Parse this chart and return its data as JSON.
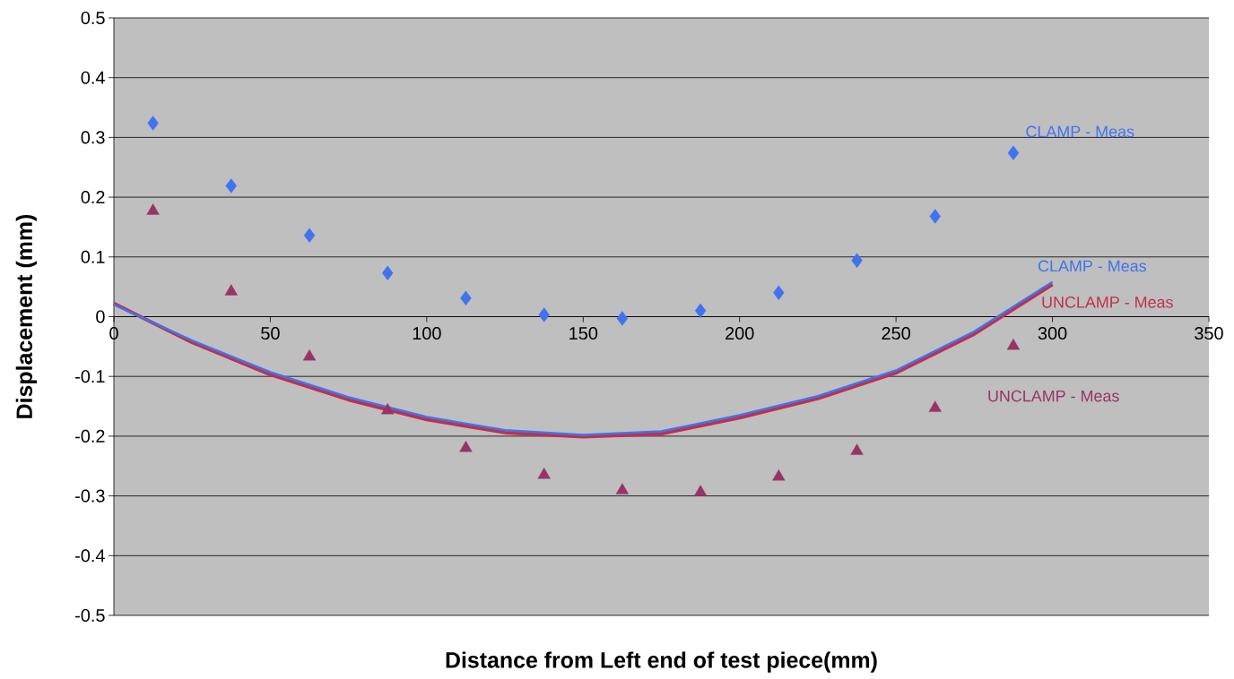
{
  "chart_data": {
    "type": "scatter",
    "xlabel": "Distance from Left end of test piece(mm)",
    "ylabel": "Displacement (mm)",
    "xlim": [
      0,
      350
    ],
    "xticks": [
      0,
      50,
      100,
      150,
      200,
      250,
      300,
      350
    ],
    "ylim": [
      -0.5,
      0.5
    ],
    "yticks": [
      -0.5,
      -0.4,
      -0.3,
      -0.2,
      -0.1,
      0,
      0.1,
      0.2,
      0.3,
      0.4,
      0.5
    ],
    "grid": "y",
    "legend": false,
    "series": [
      {
        "name": "CLAMP - Meas",
        "marker": "diamond",
        "color": "#3f73f0",
        "x": [
          12.5,
          37.5,
          62.5,
          87.5,
          112.5,
          137.5,
          162.5,
          187.5,
          212.5,
          237.5,
          262.5,
          287.5
        ],
        "values": [
          0.324,
          0.219,
          0.136,
          0.073,
          0.031,
          0.003,
          -0.003,
          0.01,
          0.04,
          0.094,
          0.168,
          0.274
        ]
      },
      {
        "name": "UNCLAMP - Meas",
        "marker": "triangle",
        "color": "#993366",
        "x": [
          12.5,
          37.5,
          62.5,
          87.5,
          112.5,
          137.5,
          162.5,
          187.5,
          212.5,
          237.5,
          262.5,
          287.5
        ],
        "values": [
          0.177,
          0.042,
          -0.067,
          -0.157,
          -0.22,
          -0.265,
          -0.291,
          -0.294,
          -0.268,
          -0.225,
          -0.153,
          -0.049
        ]
      },
      {
        "name": "UNCLAMP - Meas",
        "type": "line",
        "marker": "none",
        "line_style": "solid",
        "color": "#c0304a",
        "x": [
          0,
          25,
          50,
          75,
          100,
          125,
          150,
          175,
          200,
          225,
          250,
          275,
          300
        ],
        "values": [
          0.022,
          -0.043,
          -0.097,
          -0.139,
          -0.172,
          -0.194,
          -0.201,
          -0.196,
          -0.169,
          -0.137,
          -0.094,
          -0.029,
          0.054
        ]
      },
      {
        "name": "CLAMP - Meas",
        "type": "line",
        "marker": "none",
        "line_style": "solid",
        "color": "#3f73f0",
        "x": [
          0,
          25,
          50,
          75,
          100,
          125,
          150,
          175,
          200,
          225,
          250,
          275,
          300
        ],
        "values": [
          0.02,
          -0.04,
          -0.093,
          -0.135,
          -0.168,
          -0.19,
          -0.198,
          -0.192,
          -0.165,
          -0.133,
          -0.09,
          -0.025,
          0.058
        ]
      }
    ]
  }
}
